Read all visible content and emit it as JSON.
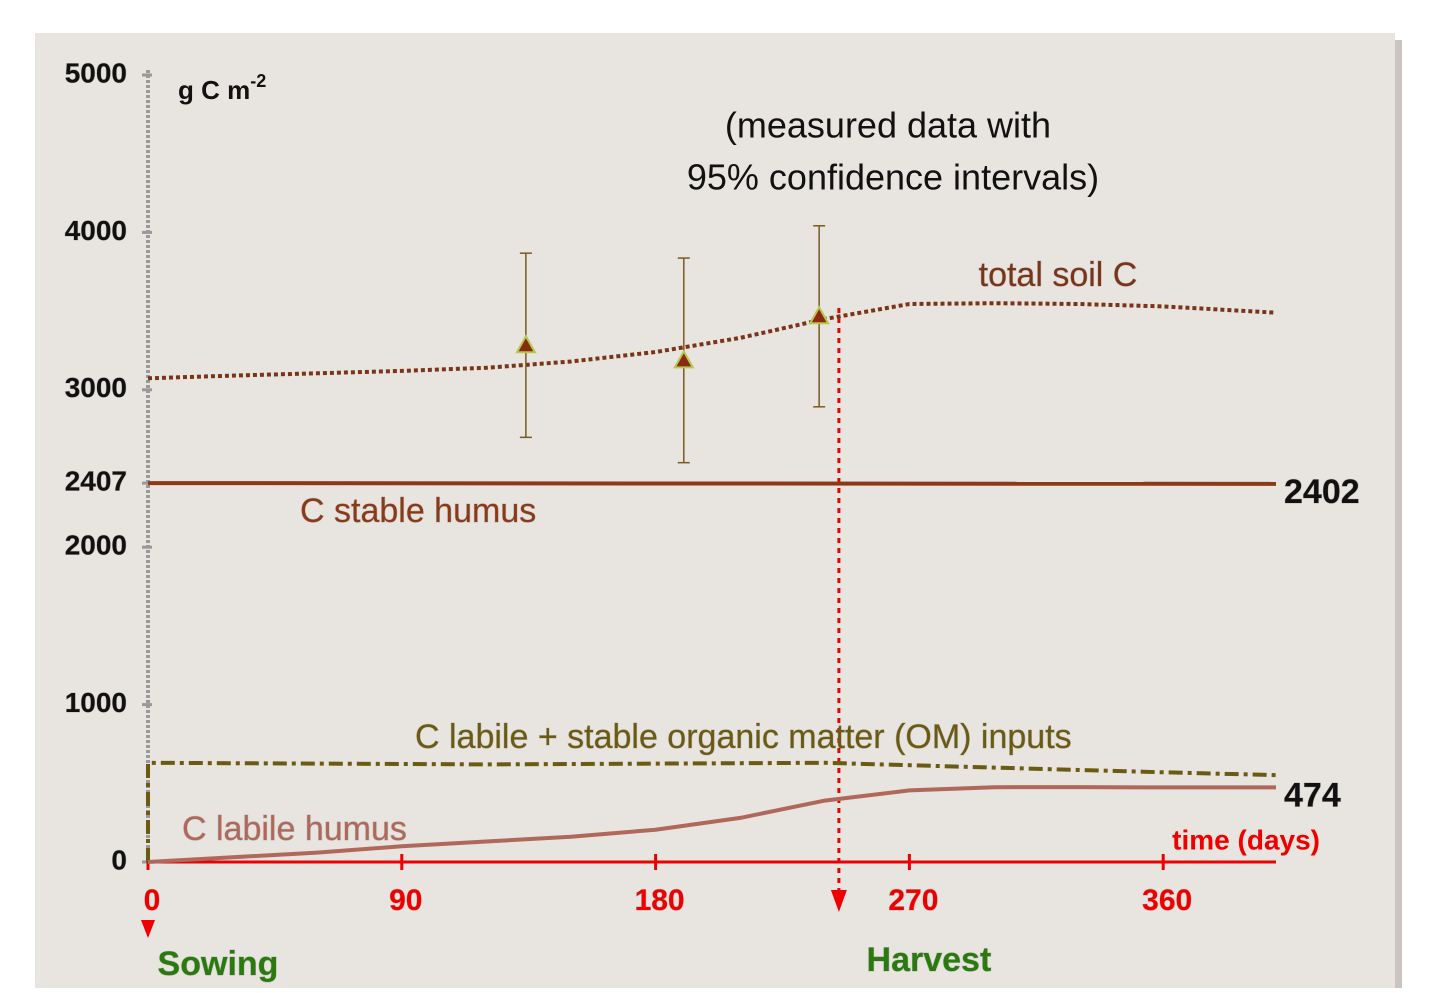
{
  "chart_data": {
    "type": "line",
    "y_label": "g C m",
    "y_label_sup": "-2",
    "x_label": "time (days)",
    "annotation": [
      "(measured data with",
      "95% confidence intervals)"
    ],
    "xlim": [
      0,
      400
    ],
    "ylim": [
      0,
      5000
    ],
    "xticks": [
      0,
      90,
      180,
      270,
      360
    ],
    "yticks": [
      0,
      1000,
      2000,
      2407,
      3000,
      4000,
      5000
    ],
    "events": [
      {
        "label": "Sowing",
        "day": 0
      },
      {
        "label": "Harvest",
        "day": 245
      }
    ],
    "series": [
      {
        "name": "total soil C",
        "color": "#7a3519",
        "style": "dotted",
        "x": [
          0,
          30,
          60,
          90,
          120,
          150,
          180,
          210,
          240,
          270,
          300,
          330,
          360,
          400
        ],
        "values": [
          3073,
          3090,
          3105,
          3120,
          3140,
          3180,
          3240,
          3330,
          3450,
          3545,
          3550,
          3545,
          3530,
          3490
        ]
      },
      {
        "name": "C stable humus",
        "color": "#8a3a18",
        "style": "solid",
        "x": [
          0,
          400
        ],
        "values": [
          2407,
          2402
        ],
        "value_labels": [
          null,
          "2402"
        ]
      },
      {
        "name": "C labile + stable organic matter (OM) inputs",
        "color": "#6b5a12",
        "style": "dashdot",
        "x": [
          0,
          0,
          60,
          120,
          180,
          240,
          300,
          360,
          400
        ],
        "values": [
          0,
          630,
          625,
          620,
          625,
          630,
          600,
          570,
          552
        ]
      },
      {
        "name": "C labile humus",
        "color": "#b0685a",
        "style": "solid",
        "x": [
          0,
          30,
          60,
          90,
          120,
          150,
          180,
          210,
          240,
          270,
          300,
          330,
          360,
          400
        ],
        "values": [
          0,
          30,
          60,
          100,
          130,
          160,
          205,
          280,
          390,
          455,
          475,
          476,
          474,
          474
        ],
        "value_labels": [
          null,
          null,
          null,
          null,
          null,
          null,
          null,
          null,
          null,
          null,
          null,
          null,
          null,
          "474"
        ]
      }
    ],
    "measured": {
      "color": "#7a5a20",
      "marker_color": "#8a2a10",
      "x": [
        134,
        190,
        238
      ],
      "values": [
        3283,
        3187,
        3467
      ],
      "errors": [
        585,
        650,
        575
      ]
    }
  }
}
